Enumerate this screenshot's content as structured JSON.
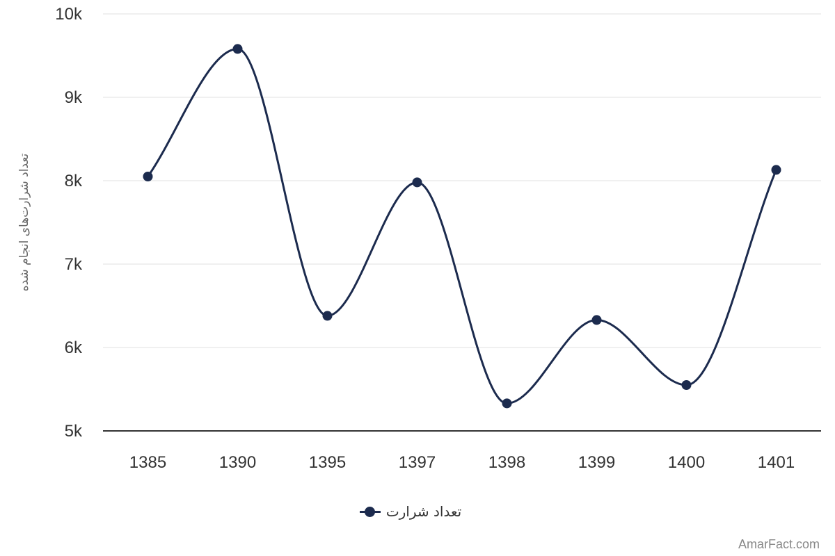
{
  "chart_data": {
    "type": "line",
    "smooth": true,
    "categories": [
      "1385",
      "1390",
      "1395",
      "1397",
      "1398",
      "1399",
      "1400",
      "1401"
    ],
    "series": [
      {
        "name": "تعداد شرارت",
        "values": [
          8050,
          9580,
          6380,
          7980,
          5330,
          6330,
          5550,
          8130
        ],
        "color": "#1c2b4e"
      }
    ],
    "y_ticks": [
      "5k",
      "6k",
      "7k",
      "8k",
      "9k",
      "10k"
    ],
    "ylim": [
      5000,
      10000
    ],
    "ylabel": "تعداد شرارت‌های انجام شده",
    "xlabel": "",
    "grid": true,
    "legend_position": "bottom-center"
  },
  "watermark": "AmarFact.com"
}
